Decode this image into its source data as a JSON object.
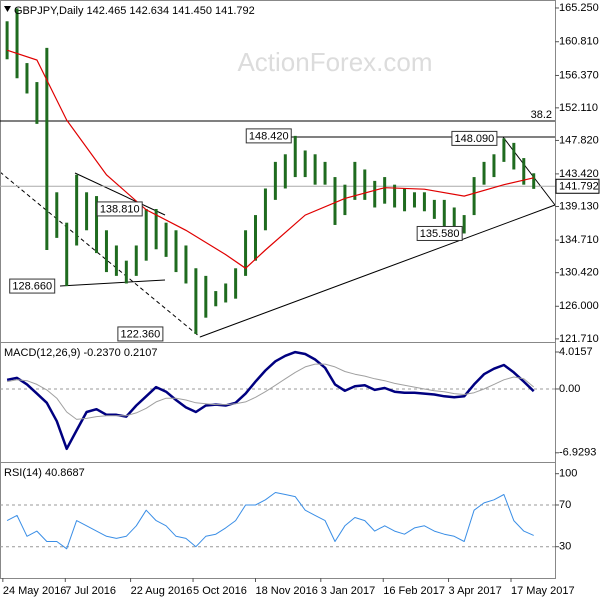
{
  "chart_data": [
    {
      "type": "ohlc",
      "title": "GBPJPY,Daily 142.465 142.634 141.450 141.792",
      "watermark": "ActionForex.com",
      "color": "#1f6b1f",
      "xlim": [
        "2016-05-22",
        "2017-06-17"
      ],
      "ylim": [
        121.3,
        166.3
      ],
      "yticks": [
        {
          "value": 165.25,
          "label": "165.250"
        },
        {
          "value": 160.81,
          "label": "160.810"
        },
        {
          "value": 156.37,
          "label": "156.370"
        },
        {
          "value": 152.11,
          "label": "152.110"
        },
        {
          "value": 147.82,
          "label": "147.820"
        },
        {
          "value": 143.42,
          "label": "143.420"
        },
        {
          "value": 139.13,
          "label": "139.130"
        },
        {
          "value": 134.71,
          "label": "134.710"
        },
        {
          "value": 130.42,
          "label": "130.420"
        },
        {
          "value": 126.0,
          "label": "126.000"
        },
        {
          "value": 121.71,
          "label": "121.710"
        }
      ],
      "x": [
        "2016-05-27",
        "2016-06-03",
        "2016-06-10",
        "2016-06-17",
        "2016-06-24",
        "2016-07-01",
        "2016-07-08",
        "2016-07-15",
        "2016-07-22",
        "2016-07-29",
        "2016-08-05",
        "2016-08-12",
        "2016-08-19",
        "2016-08-26",
        "2016-09-02",
        "2016-09-09",
        "2016-09-16",
        "2016-09-23",
        "2016-09-30",
        "2016-10-07",
        "2016-10-14",
        "2016-10-21",
        "2016-10-28",
        "2016-11-04",
        "2016-11-11",
        "2016-11-18",
        "2016-11-25",
        "2016-12-02",
        "2016-12-09",
        "2016-12-16",
        "2016-12-23",
        "2016-12-30",
        "2017-01-06",
        "2017-01-13",
        "2017-01-20",
        "2017-01-27",
        "2017-02-03",
        "2017-02-10",
        "2017-02-17",
        "2017-02-24",
        "2017-03-03",
        "2017-03-10",
        "2017-03-17",
        "2017-03-24",
        "2017-03-31",
        "2017-04-07",
        "2017-04-14",
        "2017-04-21",
        "2017-04-28",
        "2017-05-05",
        "2017-05-12",
        "2017-05-19",
        "2017-05-26",
        "2017-06-02"
      ],
      "high": [
        163.5,
        165.2,
        158,
        155.5,
        160,
        141,
        137,
        143.3,
        141,
        140.5,
        136,
        134,
        132,
        134,
        138.8,
        138.8,
        137,
        136,
        134,
        131,
        130,
        128,
        129,
        131,
        136,
        138,
        141.5,
        145,
        146,
        148.42,
        146.5,
        146,
        145,
        143,
        142,
        145,
        144,
        142.5,
        143,
        142,
        141.5,
        141,
        141,
        140,
        140,
        139,
        138,
        143,
        145,
        146,
        148.09,
        147.5,
        145.5,
        143.5
      ],
      "low": [
        158.5,
        156,
        154,
        150,
        133.4,
        135,
        128.66,
        134,
        136,
        133,
        130.5,
        130,
        129,
        130,
        132,
        133.5,
        132.5,
        130.5,
        129,
        122.36,
        124.5,
        126,
        126.5,
        127,
        130,
        132,
        136,
        140,
        141.5,
        143,
        143,
        142,
        142,
        136.7,
        138,
        140,
        140,
        139,
        139.5,
        139,
        138.5,
        139,
        138.5,
        137.5,
        136.5,
        136,
        135.58,
        138,
        142,
        143,
        145,
        144,
        142,
        141.45
      ],
      "ma": {
        "color": "#e00000",
        "x": [
          "2016-05-27",
          "2016-06-17",
          "2016-07-08",
          "2016-08-05",
          "2016-09-02",
          "2016-09-30",
          "2016-10-28",
          "2016-11-11",
          "2016-11-25",
          "2016-12-23",
          "2017-01-20",
          "2017-02-17",
          "2017-03-17",
          "2017-04-14",
          "2017-05-12",
          "2017-06-02"
        ],
        "values": [
          159.7,
          158.4,
          150.5,
          143.3,
          138.7,
          136,
          132.8,
          131,
          133.4,
          138,
          140.2,
          141.6,
          141.4,
          140.5,
          142,
          142.9
        ]
      },
      "fib_line": {
        "text": "38.2",
        "price": 150.38
      },
      "last": 141.792,
      "annotations": [
        {
          "x": "2016-12-16",
          "value": 148.42,
          "label": "148.420"
        },
        {
          "x": "2017-05-12",
          "value": 148.09,
          "label": "148.090"
        },
        {
          "x": "2016-09-02",
          "value": 138.81,
          "label": "138.810"
        },
        {
          "x": "2016-07-08",
          "value": 128.66,
          "label": "128.660"
        },
        {
          "x": "2016-10-07",
          "value": 122.36,
          "label": "122.360"
        },
        {
          "x": "2017-04-14",
          "value": 135.58,
          "label": "135.580"
        }
      ]
    },
    {
      "type": "line",
      "title": "MACD(12,26,9) -0.2370 0.2107",
      "xlim": [
        "2016-05-22",
        "2017-06-17"
      ],
      "ylim": [
        -7.93,
        5.1
      ],
      "yticks": [
        4.0157,
        {
          "value": 0,
          "label": "0.00"
        },
        -6.9293
      ],
      "levels": [
        0
      ],
      "x": [
        "2016-05-27",
        "2016-06-03",
        "2016-06-10",
        "2016-06-17",
        "2016-06-24",
        "2016-07-01",
        "2016-07-08",
        "2016-07-15",
        "2016-07-22",
        "2016-07-29",
        "2016-08-05",
        "2016-08-12",
        "2016-08-19",
        "2016-08-26",
        "2016-09-02",
        "2016-09-09",
        "2016-09-16",
        "2016-09-23",
        "2016-09-30",
        "2016-10-07",
        "2016-10-14",
        "2016-10-21",
        "2016-10-28",
        "2016-11-04",
        "2016-11-11",
        "2016-11-18",
        "2016-11-25",
        "2016-12-02",
        "2016-12-09",
        "2016-12-16",
        "2016-12-23",
        "2016-12-30",
        "2017-01-06",
        "2017-01-13",
        "2017-01-20",
        "2017-01-27",
        "2017-02-03",
        "2017-02-10",
        "2017-02-17",
        "2017-02-24",
        "2017-03-03",
        "2017-03-10",
        "2017-03-17",
        "2017-03-24",
        "2017-03-31",
        "2017-04-07",
        "2017-04-14",
        "2017-04-21",
        "2017-04-28",
        "2017-05-05",
        "2017-05-12",
        "2017-05-19",
        "2017-05-26",
        "2017-06-02"
      ],
      "series": [
        {
          "color": "#000080",
          "width": 2.5,
          "values": [
            1.0,
            1.2,
            0.5,
            -0.5,
            -1.5,
            -3.5,
            -6.5,
            -4.5,
            -2.5,
            -2.2,
            -2.8,
            -2.8,
            -3,
            -1.8,
            -0.8,
            0.2,
            -0.3,
            -1.2,
            -2,
            -2.5,
            -1.8,
            -1.7,
            -1.8,
            -1.5,
            -0.5,
            0.8,
            2.0,
            3.0,
            3.6,
            4.0,
            3.8,
            3.2,
            2.3,
            0.5,
            -0.2,
            0.3,
            0.4,
            -0.1,
            0.1,
            -0.3,
            -0.4,
            -0.4,
            -0.5,
            -0.6,
            -0.8,
            -0.9,
            -0.8,
            0.5,
            1.6,
            2.2,
            2.6,
            1.8,
            0.8,
            -0.237
          ]
        },
        {
          "color": "#a0a0a0",
          "width": 1,
          "values": [
            0.8,
            1.0,
            0.9,
            0.5,
            -0.1,
            -1.0,
            -2.5,
            -3.3,
            -3.2,
            -3.0,
            -2.9,
            -2.9,
            -2.9,
            -2.6,
            -2.1,
            -1.4,
            -1.0,
            -1.0,
            -1.2,
            -1.5,
            -1.6,
            -1.7,
            -1.7,
            -1.6,
            -1.4,
            -0.9,
            -0.3,
            0.4,
            1.1,
            1.8,
            2.4,
            2.7,
            2.7,
            2.4,
            1.9,
            1.6,
            1.4,
            1.1,
            0.9,
            0.6,
            0.4,
            0.2,
            0.0,
            -0.2,
            -0.3,
            -0.5,
            -0.6,
            -0.4,
            0.0,
            0.5,
            1.0,
            1.3,
            1.1,
            0.2107
          ]
        }
      ]
    },
    {
      "type": "line",
      "title": "RSI(14) 40.8687",
      "xlim": [
        "2016-05-22",
        "2017-06-17"
      ],
      "ylim": [
        0,
        111.2
      ],
      "yticks": [
        100,
        70,
        30
      ],
      "levels": [
        70,
        30
      ],
      "xticks": [
        {
          "value": "2016-05-24",
          "label": "24 May 2016"
        },
        {
          "value": "2016-07-07",
          "label": "7 Jul 2016"
        },
        {
          "value": "2016-08-22",
          "label": "22 Aug 2016"
        },
        {
          "value": "2016-10-05",
          "label": "5 Oct 2016"
        },
        {
          "value": "2016-11-18",
          "label": "18 Nov 2016"
        },
        {
          "value": "2017-01-03",
          "label": "3 Jan 2017"
        },
        {
          "value": "2017-02-16",
          "label": "16 Feb 2017"
        },
        {
          "value": "2017-04-03",
          "label": "3 Apr 2017"
        },
        {
          "value": "2017-05-17",
          "label": "17 May 2017"
        }
      ],
      "x": [
        "2016-05-27",
        "2016-06-03",
        "2016-06-10",
        "2016-06-17",
        "2016-06-24",
        "2016-07-01",
        "2016-07-08",
        "2016-07-15",
        "2016-07-22",
        "2016-07-29",
        "2016-08-05",
        "2016-08-12",
        "2016-08-19",
        "2016-08-26",
        "2016-09-02",
        "2016-09-09",
        "2016-09-16",
        "2016-09-23",
        "2016-09-30",
        "2016-10-07",
        "2016-10-14",
        "2016-10-21",
        "2016-10-28",
        "2016-11-04",
        "2016-11-11",
        "2016-11-18",
        "2016-11-25",
        "2016-12-02",
        "2016-12-09",
        "2016-12-16",
        "2016-12-23",
        "2016-12-30",
        "2017-01-06",
        "2017-01-13",
        "2017-01-20",
        "2017-01-27",
        "2017-02-03",
        "2017-02-10",
        "2017-02-17",
        "2017-02-24",
        "2017-03-03",
        "2017-03-10",
        "2017-03-17",
        "2017-03-24",
        "2017-03-31",
        "2017-04-07",
        "2017-04-14",
        "2017-04-21",
        "2017-04-28",
        "2017-05-05",
        "2017-05-12",
        "2017-05-19",
        "2017-05-26",
        "2017-06-02"
      ],
      "series": [
        {
          "color": "#3a8ee6",
          "width": 1,
          "values": [
            55,
            60,
            40,
            45,
            35,
            35,
            28,
            55,
            50,
            45,
            40,
            38,
            40,
            50,
            65,
            55,
            50,
            40,
            38,
            30,
            40,
            42,
            48,
            55,
            70,
            70,
            75,
            82,
            80,
            78,
            65,
            60,
            55,
            35,
            50,
            58,
            55,
            45,
            50,
            45,
            42,
            48,
            50,
            45,
            42,
            40,
            35,
            65,
            72,
            75,
            80,
            55,
            45,
            40.8687
          ]
        }
      ]
    }
  ]
}
